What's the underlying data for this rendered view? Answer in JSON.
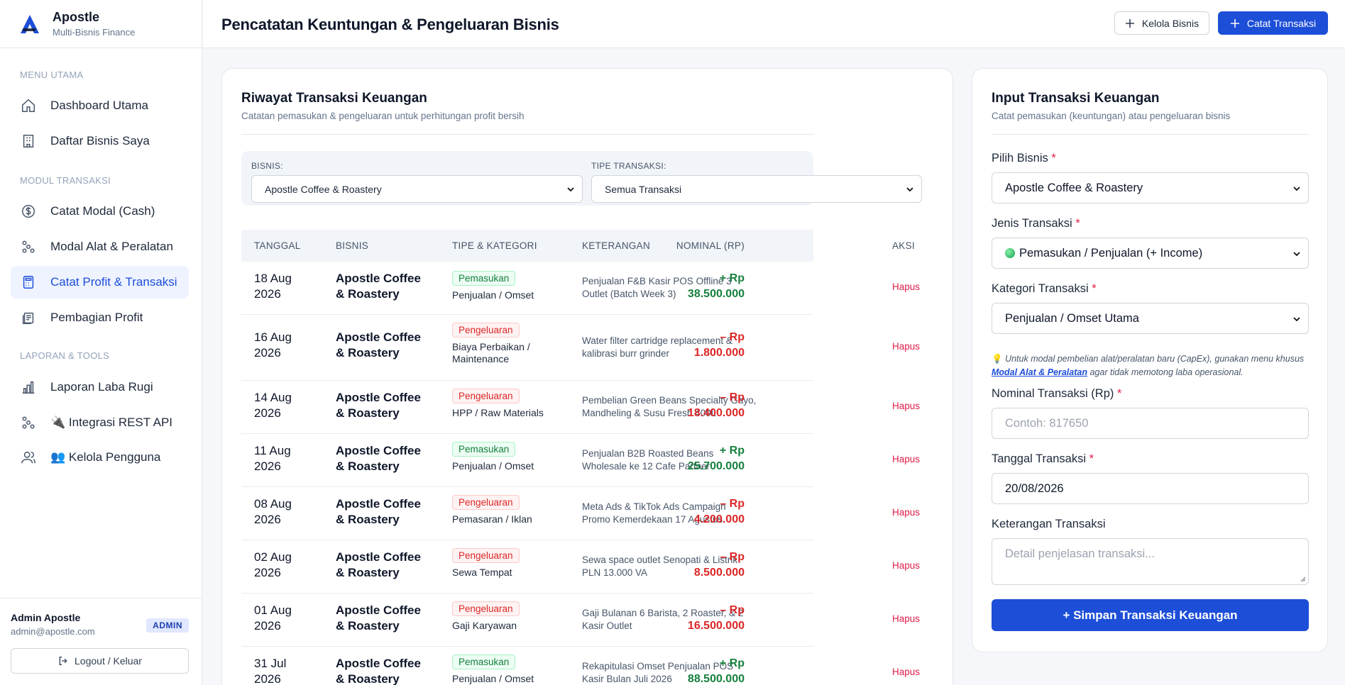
{
  "brand": {
    "name": "Apostle",
    "subtitle": "Multi-Bisnis Finance"
  },
  "sidebar": {
    "sections": [
      "MENU UTAMA",
      "MODUL TRANSAKSI",
      "LAPORAN & TOOLS"
    ],
    "items": [
      {
        "label": "Dashboard Utama",
        "icon": "home-icon"
      },
      {
        "label": "Daftar Bisnis Saya",
        "icon": "building-icon"
      },
      {
        "label": "Catat Modal (Cash)",
        "icon": "dollar-circle-icon"
      },
      {
        "label": "Modal Alat & Peralatan",
        "icon": "tools-icon"
      },
      {
        "label": "Catat Profit & Transaksi",
        "icon": "calculator-icon",
        "active": true
      },
      {
        "label": "Pembagian Profit",
        "icon": "receipt-icon"
      },
      {
        "label": "Laporan Laba Rugi",
        "icon": "chart-icon"
      },
      {
        "label": "🔌 Integrasi REST API",
        "icon": "api-icon"
      },
      {
        "label": "👥 Kelola Pengguna",
        "icon": "users-icon"
      }
    ]
  },
  "user": {
    "name": "Admin Apostle",
    "email": "admin@apostle.com",
    "role": "ADMIN",
    "logout_label": "Logout / Keluar"
  },
  "header": {
    "title": "Pencatatan Keuntungan & Pengeluaran Bisnis",
    "manage_label": "Kelola Bisnis",
    "record_label": "Catat Transaksi"
  },
  "history": {
    "title": "Riwayat Transaksi Keuangan",
    "subtitle": "Catatan pemasukan & pengeluaran untuk perhitungan profit bersih",
    "filter_business_label": "BISNIS:",
    "filter_business_value": "Apostle Coffee & Roastery",
    "filter_type_label": "TIPE TRANSAKSI:",
    "filter_type_value": "Semua Transaksi",
    "columns": [
      "TANGGAL",
      "BISNIS",
      "TIPE & KATEGORI",
      "KETERANGAN",
      "NOMINAL (RP)",
      "AKSI"
    ],
    "rows": [
      {
        "date_l1": "18 Aug",
        "date_l2": "2026",
        "biz_l1": "Apostle Coffee",
        "biz_l2": "& Roastery",
        "type": "Pemasukan",
        "kind": "income",
        "category": "Penjualan / Omset",
        "desc": "Penjualan F&B Kasir POS Offline 3 Outlet (Batch Week 3)",
        "amt_l1": "+ Rp",
        "amt_l2": "38.500.000",
        "action": "Hapus"
      },
      {
        "date_l1": "16 Aug",
        "date_l2": "2026",
        "biz_l1": "Apostle Coffee",
        "biz_l2": "& Roastery",
        "type": "Pengeluaran",
        "kind": "expense",
        "category": "Biaya Perbaikan / Maintenance",
        "desc": "Water filter cartridge replacement & kalibrasi burr grinder",
        "amt_l1": "– Rp",
        "amt_l2": "1.800.000",
        "action": "Hapus"
      },
      {
        "date_l1": "14 Aug",
        "date_l2": "2026",
        "biz_l1": "Apostle Coffee",
        "biz_l2": "& Roastery",
        "type": "Pengeluaran",
        "kind": "expense",
        "category": "HPP / Raw Materials",
        "desc": "Pembelian Green Beans Specialty Gayo, Mandheling & Susu Fresh 400L",
        "amt_l1": "– Rp",
        "amt_l2": "18.400.000",
        "action": "Hapus"
      },
      {
        "date_l1": "11 Aug",
        "date_l2": "2026",
        "biz_l1": "Apostle Coffee",
        "biz_l2": "& Roastery",
        "type": "Pemasukan",
        "kind": "income",
        "category": "Penjualan / Omset",
        "desc": "Penjualan B2B Roasted Beans Wholesale ke 12 Cafe Partner",
        "amt_l1": "+ Rp",
        "amt_l2": "25.700.000",
        "action": "Hapus"
      },
      {
        "date_l1": "08 Aug",
        "date_l2": "2026",
        "biz_l1": "Apostle Coffee",
        "biz_l2": "& Roastery",
        "type": "Pengeluaran",
        "kind": "expense",
        "category": "Pemasaran / Iklan",
        "desc": "Meta Ads & TikTok Ads Campaign Promo Kemerdekaan 17 Agustus",
        "amt_l1": "– Rp",
        "amt_l2": "4.200.000",
        "action": "Hapus"
      },
      {
        "date_l1": "02 Aug",
        "date_l2": "2026",
        "biz_l1": "Apostle Coffee",
        "biz_l2": "& Roastery",
        "type": "Pengeluaran",
        "kind": "expense",
        "category": "Sewa Tempat",
        "desc": "Sewa space outlet Senopati & Listrik PLN 13.000 VA",
        "amt_l1": "– Rp",
        "amt_l2": "8.500.000",
        "action": "Hapus"
      },
      {
        "date_l1": "01 Aug",
        "date_l2": "2026",
        "biz_l1": "Apostle Coffee",
        "biz_l2": "& Roastery",
        "type": "Pengeluaran",
        "kind": "expense",
        "category": "Gaji Karyawan",
        "desc": "Gaji Bulanan 6 Barista, 2 Roaster, & 2 Kasir Outlet",
        "amt_l1": "– Rp",
        "amt_l2": "16.500.000",
        "action": "Hapus"
      },
      {
        "date_l1": "31 Jul",
        "date_l2": "2026",
        "biz_l1": "Apostle Coffee",
        "biz_l2": "& Roastery",
        "type": "Pemasukan",
        "kind": "income",
        "category": "Penjualan / Omset",
        "desc": "Rekapitulasi Omset Penjualan POS Kasir Bulan Juli 2026",
        "amt_l1": "+ Rp",
        "amt_l2": "88.500.000",
        "action": "Hapus"
      }
    ]
  },
  "form": {
    "title": "Input Transaksi Keuangan",
    "subtitle": "Catat pemasukan (keuntungan) atau pengeluaran bisnis",
    "business_label": "Pilih Bisnis",
    "business_value": "Apostle Coffee & Roastery",
    "type_label": "Jenis Transaksi",
    "type_value": "Pemasukan / Penjualan (+ Income)",
    "category_label": "Kategori Transaksi",
    "category_value": "Penjualan / Omset Utama",
    "hint_prefix": "Untuk modal pembelian alat/peralatan baru (CapEx), gunakan menu khusus",
    "hint_link": "Modal Alat & Peralatan",
    "hint_suffix": "agar tidak memotong laba operasional.",
    "amount_label": "Nominal Transaksi (Rp)",
    "amount_placeholder": "Contoh: 817650",
    "date_label": "Tanggal Transaksi",
    "date_value": "20/08/2026",
    "notes_label": "Keterangan Transaksi",
    "notes_placeholder": "Detail penjelasan transaksi...",
    "required_mark": "*",
    "submit_label": "+ Simpan Transaksi Keuangan"
  },
  "colors": {
    "accent": "#1d4ed8",
    "income": "#15803d",
    "expense": "#dc2626"
  }
}
